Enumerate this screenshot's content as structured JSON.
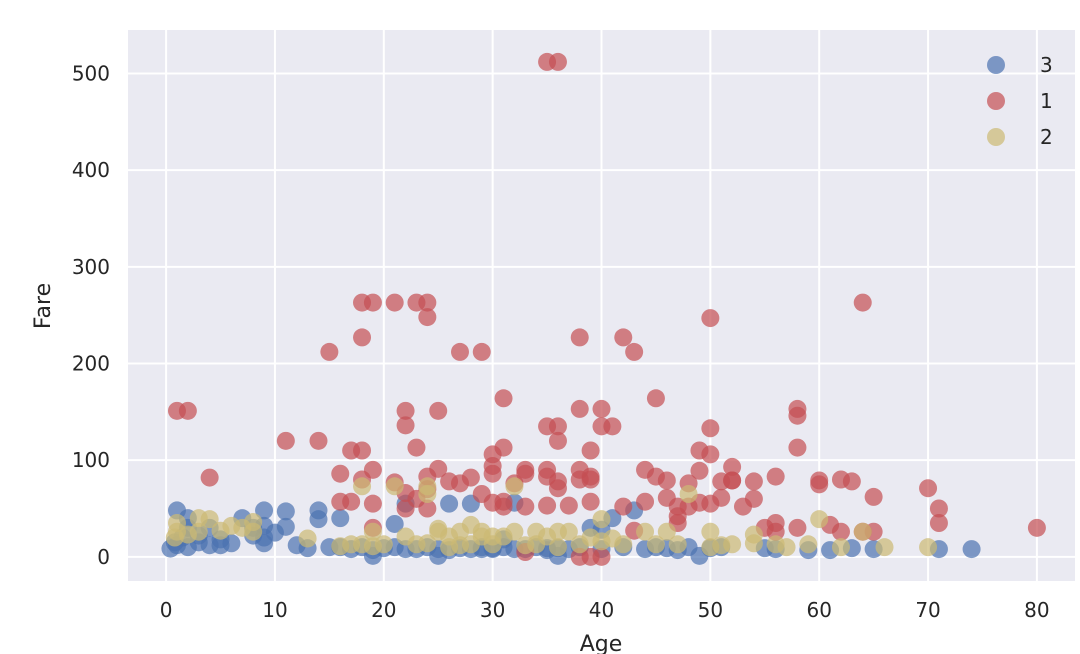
{
  "chart_data": {
    "type": "scatter",
    "title": "",
    "xlabel": "Age",
    "ylabel": "Fare",
    "xlim": [
      -3.5,
      83.5
    ],
    "ylim": [
      -25,
      545
    ],
    "xticks": [
      0,
      10,
      20,
      30,
      40,
      50,
      60,
      70,
      80
    ],
    "yticks": [
      0,
      100,
      200,
      300,
      400,
      500
    ],
    "grid": true,
    "legend_position": "top-right",
    "background": "#EAEAF2",
    "series": [
      {
        "name": "3",
        "color": "#4C72B0",
        "points": [
          [
            0.4,
            8.5
          ],
          [
            0.8,
            15
          ],
          [
            1,
            48
          ],
          [
            1,
            12
          ],
          [
            1.5,
            20
          ],
          [
            2,
            40
          ],
          [
            2,
            30
          ],
          [
            2,
            10
          ],
          [
            3,
            22
          ],
          [
            3,
            15
          ],
          [
            4,
            12
          ],
          [
            4,
            30
          ],
          [
            5,
            18
          ],
          [
            5,
            12
          ],
          [
            6,
            14
          ],
          [
            7,
            40
          ],
          [
            8,
            30
          ],
          [
            8,
            22
          ],
          [
            9,
            48
          ],
          [
            9,
            32
          ],
          [
            9,
            20
          ],
          [
            9,
            14
          ],
          [
            10,
            25
          ],
          [
            11,
            47
          ],
          [
            11,
            31
          ],
          [
            12,
            12
          ],
          [
            13,
            9
          ],
          [
            14,
            48
          ],
          [
            14,
            39
          ],
          [
            15,
            10
          ],
          [
            16,
            40
          ],
          [
            16,
            10
          ],
          [
            17,
            8
          ],
          [
            18,
            10
          ],
          [
            19,
            7
          ],
          [
            19,
            1
          ],
          [
            20,
            9
          ],
          [
            21,
            10
          ],
          [
            21,
            34
          ],
          [
            22,
            8
          ],
          [
            22,
            55
          ],
          [
            23,
            8
          ],
          [
            24,
            10
          ],
          [
            25,
            8
          ],
          [
            25,
            1
          ],
          [
            26,
            7
          ],
          [
            26,
            55
          ],
          [
            27,
            9
          ],
          [
            28,
            8
          ],
          [
            28,
            55
          ],
          [
            29,
            10
          ],
          [
            29,
            8
          ],
          [
            30,
            9
          ],
          [
            30,
            8
          ],
          [
            31,
            10
          ],
          [
            31,
            18
          ],
          [
            32,
            8
          ],
          [
            32,
            56
          ],
          [
            33,
            8
          ],
          [
            34,
            10
          ],
          [
            35,
            9
          ],
          [
            35,
            7
          ],
          [
            36,
            1
          ],
          [
            36,
            9
          ],
          [
            37,
            8
          ],
          [
            38,
            10
          ],
          [
            39,
            30
          ],
          [
            40,
            8
          ],
          [
            40,
            28
          ],
          [
            41,
            40
          ],
          [
            42,
            10
          ],
          [
            43,
            48
          ],
          [
            44,
            8
          ],
          [
            45,
            10
          ],
          [
            46,
            9
          ],
          [
            47,
            7
          ],
          [
            48,
            10
          ],
          [
            49,
            1
          ],
          [
            50,
            9
          ],
          [
            51,
            10
          ],
          [
            55,
            9
          ],
          [
            56,
            8
          ],
          [
            59,
            7
          ],
          [
            61,
            7
          ],
          [
            63,
            9
          ],
          [
            65,
            8
          ],
          [
            71,
            8
          ],
          [
            74,
            8
          ]
        ]
      },
      {
        "name": "1",
        "color": "#C44E52",
        "points": [
          [
            1,
            151
          ],
          [
            2,
            151
          ],
          [
            4,
            82
          ],
          [
            11,
            120
          ],
          [
            14,
            120
          ],
          [
            15,
            212
          ],
          [
            16,
            57
          ],
          [
            16,
            86
          ],
          [
            17,
            110
          ],
          [
            17,
            57
          ],
          [
            18,
            263
          ],
          [
            18,
            227
          ],
          [
            18,
            110
          ],
          [
            18,
            80
          ],
          [
            19,
            263
          ],
          [
            19,
            90
          ],
          [
            19,
            30
          ],
          [
            19,
            55
          ],
          [
            21,
            263
          ],
          [
            21,
            77
          ],
          [
            22,
            151
          ],
          [
            22,
            136
          ],
          [
            22,
            66
          ],
          [
            22,
            50
          ],
          [
            23,
            263
          ],
          [
            23,
            113
          ],
          [
            23,
            60
          ],
          [
            24,
            263
          ],
          [
            24,
            248
          ],
          [
            24,
            83
          ],
          [
            24,
            70
          ],
          [
            24,
            50
          ],
          [
            25,
            151
          ],
          [
            25,
            91
          ],
          [
            26,
            78
          ],
          [
            27,
            212
          ],
          [
            27,
            76
          ],
          [
            28,
            82
          ],
          [
            29,
            212
          ],
          [
            29,
            65
          ],
          [
            30,
            106
          ],
          [
            30,
            94
          ],
          [
            30,
            86
          ],
          [
            30,
            56
          ],
          [
            31,
            164
          ],
          [
            31,
            113
          ],
          [
            31,
            57
          ],
          [
            31,
            52
          ],
          [
            32,
            76
          ],
          [
            33,
            90
          ],
          [
            33,
            86
          ],
          [
            33,
            52
          ],
          [
            35,
            512
          ],
          [
            35,
            135
          ],
          [
            35,
            90
          ],
          [
            35,
            83
          ],
          [
            35,
            53
          ],
          [
            36,
            512
          ],
          [
            36,
            135
          ],
          [
            36,
            120
          ],
          [
            36,
            78
          ],
          [
            36,
            71
          ],
          [
            37,
            53
          ],
          [
            38,
            227
          ],
          [
            38,
            153
          ],
          [
            38,
            90
          ],
          [
            38,
            80
          ],
          [
            39,
            110
          ],
          [
            39,
            83
          ],
          [
            39,
            80
          ],
          [
            39,
            57
          ],
          [
            40,
            153
          ],
          [
            40,
            135
          ],
          [
            41,
            135
          ],
          [
            42,
            227
          ],
          [
            42,
            52
          ],
          [
            43,
            212
          ],
          [
            43,
            27
          ],
          [
            44,
            90
          ],
          [
            44,
            57
          ],
          [
            45,
            164
          ],
          [
            45,
            83
          ],
          [
            46,
            79
          ],
          [
            46,
            61
          ],
          [
            47,
            52
          ],
          [
            47,
            42
          ],
          [
            47,
            35
          ],
          [
            48,
            76
          ],
          [
            48,
            52
          ],
          [
            49,
            110
          ],
          [
            49,
            89
          ],
          [
            49,
            56
          ],
          [
            50,
            247
          ],
          [
            50,
            133
          ],
          [
            50,
            106
          ],
          [
            50,
            55
          ],
          [
            51,
            78
          ],
          [
            51,
            61
          ],
          [
            52,
            93
          ],
          [
            52,
            79
          ],
          [
            52,
            79
          ],
          [
            53,
            52
          ],
          [
            54,
            78
          ],
          [
            54,
            60
          ],
          [
            55,
            30
          ],
          [
            56,
            35
          ],
          [
            56,
            26
          ],
          [
            56,
            83
          ],
          [
            58,
            153
          ],
          [
            58,
            146
          ],
          [
            58,
            113
          ],
          [
            58,
            30
          ],
          [
            60,
            79
          ],
          [
            60,
            75
          ],
          [
            61,
            33
          ],
          [
            62,
            80
          ],
          [
            62,
            26
          ],
          [
            63,
            78
          ],
          [
            64,
            263
          ],
          [
            64,
            26
          ],
          [
            65,
            62
          ],
          [
            65,
            26
          ],
          [
            70,
            71
          ],
          [
            71,
            50
          ],
          [
            71,
            35
          ],
          [
            80,
            30
          ],
          [
            38,
            0
          ],
          [
            39,
            0
          ],
          [
            40,
            0
          ],
          [
            33,
            5
          ]
        ]
      },
      {
        "name": "2",
        "color": "#CCB974",
        "points": [
          [
            0.8,
            20
          ],
          [
            1,
            35
          ],
          [
            1,
            26
          ],
          [
            2,
            23
          ],
          [
            3,
            40
          ],
          [
            3,
            26
          ],
          [
            4,
            39
          ],
          [
            5,
            27
          ],
          [
            6,
            32
          ],
          [
            7,
            30
          ],
          [
            8,
            26
          ],
          [
            8,
            36
          ],
          [
            13,
            19
          ],
          [
            16,
            11
          ],
          [
            17,
            13
          ],
          [
            18,
            73
          ],
          [
            18,
            13
          ],
          [
            19,
            26
          ],
          [
            19,
            11
          ],
          [
            20,
            13
          ],
          [
            21,
            73
          ],
          [
            22,
            21
          ],
          [
            23,
            13
          ],
          [
            24,
            73
          ],
          [
            24,
            65
          ],
          [
            24,
            14
          ],
          [
            25,
            26
          ],
          [
            25,
            29
          ],
          [
            26,
            21
          ],
          [
            26,
            10
          ],
          [
            27,
            26
          ],
          [
            27,
            12
          ],
          [
            28,
            33
          ],
          [
            28,
            13
          ],
          [
            29,
            26
          ],
          [
            29,
            21
          ],
          [
            30,
            13
          ],
          [
            30,
            21
          ],
          [
            31,
            21
          ],
          [
            32,
            73
          ],
          [
            32,
            26
          ],
          [
            33,
            12
          ],
          [
            34,
            26
          ],
          [
            34,
            13
          ],
          [
            35,
            21
          ],
          [
            36,
            26
          ],
          [
            36,
            10
          ],
          [
            37,
            26
          ],
          [
            38,
            13
          ],
          [
            39,
            20
          ],
          [
            40,
            16
          ],
          [
            40,
            39
          ],
          [
            41,
            19
          ],
          [
            42,
            13
          ],
          [
            44,
            26
          ],
          [
            45,
            13
          ],
          [
            46,
            26
          ],
          [
            47,
            13
          ],
          [
            48,
            65
          ],
          [
            50,
            10
          ],
          [
            50,
            26
          ],
          [
            51,
            12
          ],
          [
            52,
            13
          ],
          [
            54,
            23
          ],
          [
            54,
            14
          ],
          [
            56,
            13
          ],
          [
            57,
            10
          ],
          [
            59,
            13
          ],
          [
            60,
            39
          ],
          [
            62,
            10
          ],
          [
            64,
            26
          ],
          [
            66,
            10
          ],
          [
            70,
            10
          ]
        ]
      }
    ]
  }
}
